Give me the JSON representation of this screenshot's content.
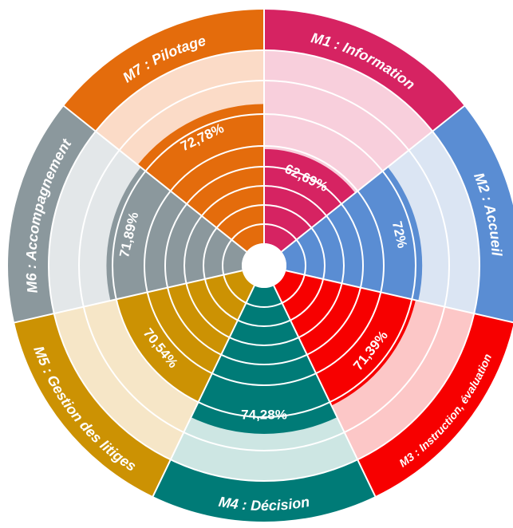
{
  "chart_data": {
    "type": "polar",
    "categories": [
      "M1 : Information",
      "M2 : Accueil",
      "M3 : Instruction, évaluation",
      "M4 : Décision",
      "M5 : Gestion des litiges",
      "M6 : Accompagnement",
      "M7 : Pilotage"
    ],
    "values": [
      62.69,
      72,
      71.39,
      74.28,
      70.54,
      71.89,
      72.78
    ],
    "value_labels": [
      "62,69%",
      "72%",
      "71,39%",
      "74,28%",
      "70,54%",
      "71,89%",
      "72,78%"
    ],
    "colors": [
      "#d62362",
      "#5a8dd3",
      "#f70000",
      "#007b77",
      "#cc9203",
      "#8b989d",
      "#e46c0c"
    ],
    "background_colors": [
      "#f8cfdc",
      "#dbe5f3",
      "#fcc7c7",
      "#cde6e3",
      "#f6e6c7",
      "#e3e7e9",
      "#fbdbc7"
    ],
    "ylim": [
      50,
      80
    ]
  }
}
